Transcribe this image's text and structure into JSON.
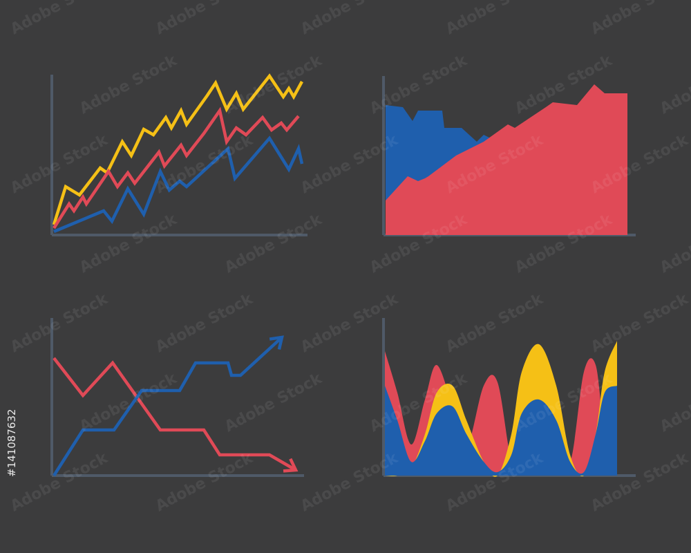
{
  "chart_data": [
    {
      "type": "line",
      "xlim": [
        0,
        370
      ],
      "ylim": [
        0,
        232
      ],
      "arrows": false,
      "smooth": false,
      "series": [
        {
          "name": null,
          "color": "#f5c016",
          "x": [
            3,
            20,
            40,
            70,
            80,
            102,
            115,
            133,
            147,
            165,
            173,
            187,
            195,
            225,
            237,
            253,
            267,
            277,
            315,
            335,
            343,
            350,
            362
          ],
          "values": [
            15,
            70,
            58,
            97,
            90,
            135,
            115,
            153,
            145,
            170,
            155,
            180,
            160,
            202,
            220,
            182,
            205,
            182,
            230,
            200,
            212,
            200,
            222
          ]
        },
        {
          "name": null,
          "color": "#e04a57",
          "x": [
            3,
            25,
            32,
            45,
            50,
            82,
            95,
            110,
            120,
            155,
            163,
            187,
            195,
            220,
            243,
            253,
            267,
            281,
            305,
            318,
            332,
            340,
            357
          ],
          "values": [
            10,
            45,
            35,
            55,
            45,
            92,
            70,
            90,
            75,
            120,
            100,
            130,
            115,
            147,
            180,
            135,
            155,
            145,
            170,
            152,
            162,
            152,
            172
          ]
        },
        {
          "name": null,
          "color": "#1f5fad",
          "x": [
            3,
            75,
            87,
            110,
            133,
            157,
            170,
            185,
            195,
            255,
            265,
            315,
            343,
            357,
            362
          ],
          "values": [
            5,
            35,
            20,
            67,
            30,
            92,
            65,
            78,
            70,
            125,
            82,
            140,
            95,
            125,
            103
          ]
        }
      ]
    },
    {
      "type": "area",
      "xlim": [
        0,
        365
      ],
      "ylim": [
        0,
        230
      ],
      "arrows": false,
      "smooth": false,
      "series": [
        {
          "name": null,
          "color": "#1f5fad",
          "x": [
            3,
            28,
            42,
            50,
            85,
            88,
            113,
            135,
            145,
            155
          ],
          "values": [
            188,
            185,
            165,
            180,
            180,
            155,
            155,
            135,
            145,
            140
          ]
        },
        {
          "name": null,
          "color": "#e04a57",
          "x": [
            3,
            35,
            50,
            60,
            65,
            105,
            145,
            180,
            190,
            235,
            245,
            280,
            305,
            320,
            353
          ],
          "values": [
            50,
            85,
            78,
            82,
            85,
            115,
            135,
            160,
            155,
            185,
            192,
            188,
            218,
            205,
            205
          ]
        }
      ]
    },
    {
      "type": "line",
      "xlim": [
        0,
        365
      ],
      "ylim": [
        0,
        228
      ],
      "arrows": true,
      "smooth": false,
      "series": [
        {
          "name": null,
          "color": "#e04a57",
          "x": [
            3,
            45,
            88,
            157,
            220,
            243,
            315,
            353
          ],
          "values": [
            170,
            116,
            163,
            66,
            66,
            30,
            30,
            8
          ]
        },
        {
          "name": null,
          "color": "#1f5fad",
          "x": [
            3,
            45,
            90,
            130,
            185,
            208,
            255,
            260,
            273,
            333
          ],
          "values": [
            0,
            66,
            66,
            123,
            123,
            163,
            163,
            145,
            145,
            200
          ]
        }
      ]
    },
    {
      "type": "area",
      "xlim": [
        0,
        365
      ],
      "ylim": [
        0,
        228
      ],
      "arrows": false,
      "smooth": true,
      "series": [
        {
          "name": null,
          "color": "#e04a57",
          "x": [
            2,
            20,
            40,
            60,
            77,
            100,
            120,
            145,
            165,
            185,
            200,
            225,
            250,
            270,
            290,
            307,
            320,
            338
          ],
          "values": [
            180,
            120,
            45,
            110,
            160,
            100,
            40,
            130,
            135,
            20,
            10,
            60,
            80,
            20,
            150,
            160,
            60,
            0
          ]
        },
        {
          "name": null,
          "color": "#f5c016",
          "x": [
            2,
            20,
            40,
            60,
            77,
            100,
            120,
            145,
            165,
            185,
            200,
            225,
            250,
            270,
            290,
            307,
            320,
            338
          ],
          "values": [
            0,
            0,
            10,
            60,
            120,
            130,
            80,
            20,
            0,
            60,
            150,
            190,
            130,
            30,
            0,
            60,
            150,
            195
          ]
        },
        {
          "name": null,
          "color": "#1f5fad",
          "x": [
            2,
            20,
            40,
            60,
            77,
            100,
            120,
            145,
            165,
            185,
            200,
            225,
            250,
            270,
            290,
            307,
            320,
            338
          ],
          "values": [
            130,
            80,
            20,
            50,
            90,
            100,
            60,
            20,
            5,
            30,
            90,
            110,
            80,
            20,
            5,
            60,
            120,
            130
          ]
        }
      ]
    }
  ],
  "watermark": {
    "text": "Adobe Stock",
    "id": "#141087632"
  }
}
